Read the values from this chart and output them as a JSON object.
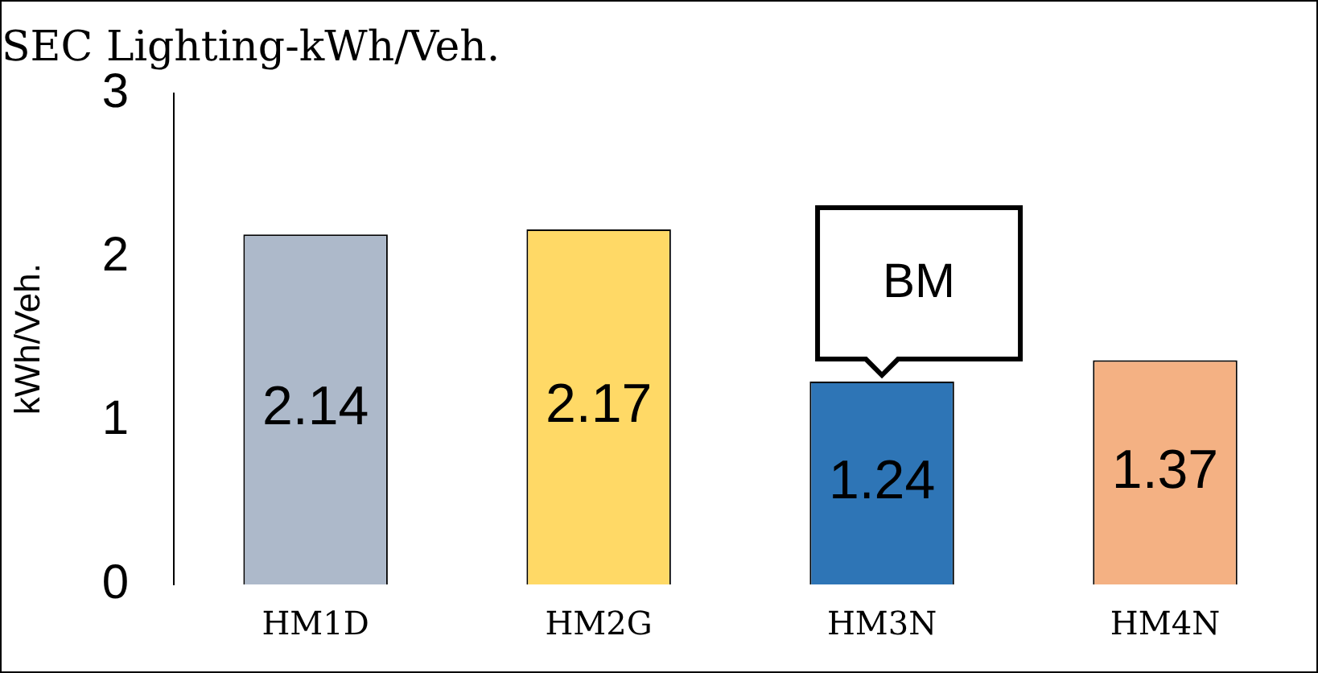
{
  "chart_data": {
    "type": "bar",
    "title": "SEC Lighting-kWh/Veh.",
    "ylabel": "kWh/Veh.",
    "categories": [
      "HM1D",
      "HM2G",
      "HM3N",
      "HM4N"
    ],
    "values": [
      2.14,
      2.17,
      1.24,
      1.37
    ],
    "colors": [
      "#adb9ca",
      "#ffd966",
      "#2e75b6",
      "#f4b183"
    ],
    "ylim": [
      0,
      3
    ],
    "yticks": [
      0,
      1,
      2,
      3
    ],
    "grid": false,
    "legend": false,
    "data_labels": true,
    "annotations": [
      {
        "text": "BM",
        "x": "HM3N",
        "y": 1.24
      }
    ]
  }
}
